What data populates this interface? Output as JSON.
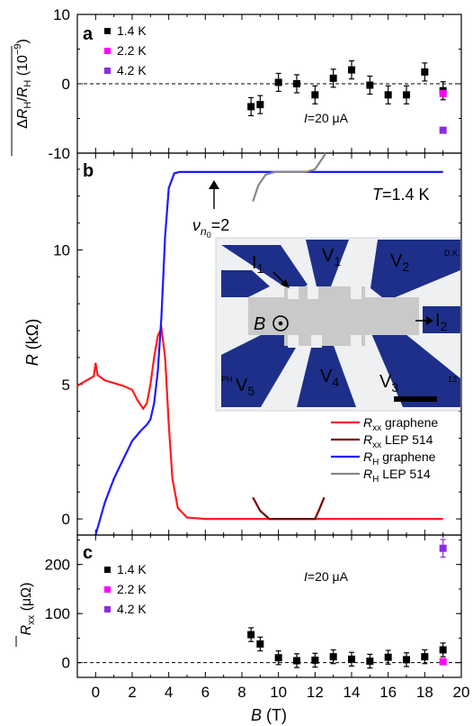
{
  "chart_data": [
    {
      "panel": "a",
      "type": "scatter",
      "ylabel": "ΔR_H/R_H (10^-9)",
      "ylim": [
        -10,
        10
      ],
      "yticks": [
        10,
        0,
        -10
      ],
      "xlim": [
        -1,
        20
      ],
      "annotation": "I=20 μA",
      "legend": [
        "1.4 K",
        "2.2 K",
        "4.2 K"
      ],
      "colors": {
        "1.4 K": "#000000",
        "2.2 K": "#ff00ff",
        "4.2 K": "#8a2be2"
      },
      "series": [
        {
          "name": "1.4 K",
          "points": [
            {
              "x": 8.5,
              "y": -3.3,
              "err": 1.3
            },
            {
              "x": 9,
              "y": -3.0,
              "err": 1.3
            },
            {
              "x": 10,
              "y": 0.2,
              "err": 1.3
            },
            {
              "x": 11,
              "y": 0.0,
              "err": 1.3
            },
            {
              "x": 12,
              "y": -1.6,
              "err": 1.3
            },
            {
              "x": 13,
              "y": 0.8,
              "err": 1.3
            },
            {
              "x": 14,
              "y": 2.0,
              "err": 1.3
            },
            {
              "x": 15,
              "y": -0.2,
              "err": 1.3
            },
            {
              "x": 16,
              "y": -1.6,
              "err": 1.3
            },
            {
              "x": 17,
              "y": -1.6,
              "err": 1.3
            },
            {
              "x": 18,
              "y": 1.7,
              "err": 1.3
            },
            {
              "x": 19,
              "y": -1.0,
              "err": 1.3
            }
          ]
        },
        {
          "name": "2.2 K",
          "points": [
            {
              "x": 19,
              "y": -1.4,
              "err": 0
            }
          ]
        },
        {
          "name": "4.2 K",
          "points": [
            {
              "x": 19,
              "y": -6.7,
              "err": 0
            }
          ]
        }
      ]
    },
    {
      "panel": "b",
      "type": "line",
      "ylabel": "R (kΩ)",
      "ylim": [
        -0.6,
        13.6
      ],
      "yticks": [
        0,
        5,
        10
      ],
      "xlim": [
        -1,
        20
      ],
      "annotations": [
        "T=1.4 K",
        "ν_n0=2"
      ],
      "legend": [
        "R_xx graphene",
        "R_xx LEP 514",
        "R_H graphene",
        "R_H LEP 514"
      ],
      "inset_labels": [
        "I1",
        "V1",
        "V2",
        "B",
        "I2",
        "V5",
        "V4",
        "V3",
        "D.K.",
        "PH",
        "12"
      ],
      "colors": {
        "R_xx graphene": "#ff1a1a",
        "R_xx LEP 514": "#7a0000",
        "R_H graphene": "#1a1aff",
        "R_H LEP 514": "#888888"
      },
      "series": [
        {
          "name": "R_xx graphene",
          "x": [
            -1,
            -0.5,
            -0.1,
            0,
            0.1,
            0.5,
            1,
            1.5,
            2,
            2.3,
            2.6,
            2.8,
            3.0,
            3.2,
            3.4,
            3.6,
            3.8,
            4.0,
            4.2,
            4.5,
            5,
            6,
            8,
            10,
            14,
            18,
            19
          ],
          "y": [
            4.95,
            5.15,
            5.3,
            5.8,
            5.35,
            5.15,
            5.05,
            4.95,
            4.8,
            4.4,
            4.1,
            4.3,
            5.0,
            6.0,
            6.8,
            7.1,
            6.0,
            3.5,
            1.5,
            0.4,
            0.05,
            0,
            0,
            0,
            0,
            0,
            0
          ]
        },
        {
          "name": "R_xx LEP 514",
          "x": [
            8.6,
            9.0,
            9.5,
            10,
            11,
            12,
            12.2,
            12.5
          ],
          "y": [
            0.8,
            0.3,
            0,
            0,
            0,
            0,
            0.3,
            0.8
          ]
        },
        {
          "name": "R_H graphene",
          "x": [
            0,
            0.5,
            1,
            1.5,
            2,
            2.5,
            2.8,
            3.0,
            3.2,
            3.4,
            3.6,
            3.8,
            4.0,
            4.3,
            4.6,
            5,
            6,
            10,
            15,
            19
          ],
          "y": [
            -0.6,
            0.6,
            1.5,
            2.2,
            2.9,
            3.3,
            3.5,
            3.7,
            4.3,
            5.5,
            7.5,
            10.5,
            12.3,
            12.85,
            12.9,
            12.9,
            12.9,
            12.9,
            12.9,
            12.9
          ]
        },
        {
          "name": "R_H LEP 514",
          "x": [
            8.6,
            8.9,
            9.3,
            9.8,
            10.5,
            11.5,
            12,
            12.3,
            12.6
          ],
          "y": [
            11.8,
            12.4,
            12.8,
            12.9,
            12.9,
            12.9,
            13.0,
            13.3,
            13.7
          ]
        }
      ]
    },
    {
      "panel": "c",
      "type": "scatter",
      "ylabel": "R̄_xx (μΩ)",
      "ylim": [
        -30,
        260
      ],
      "yticks": [
        200,
        100,
        0
      ],
      "xlim": [
        -1,
        20
      ],
      "xticks": [
        0,
        2,
        4,
        6,
        8,
        10,
        12,
        14,
        16,
        18,
        20
      ],
      "xlabel": "B (T)",
      "annotation": "I=20 μA",
      "legend": [
        "1.4 K",
        "2.2 K",
        "4.2 K"
      ],
      "colors": {
        "1.4 K": "#000000",
        "2.2 K": "#ff00ff",
        "4.2 K": "#8a2be2"
      },
      "series": [
        {
          "name": "1.4 K",
          "points": [
            {
              "x": 8.5,
              "y": 57,
              "err": 14
            },
            {
              "x": 9,
              "y": 38,
              "err": 14
            },
            {
              "x": 10,
              "y": 10,
              "err": 14
            },
            {
              "x": 11,
              "y": 4,
              "err": 14
            },
            {
              "x": 12,
              "y": 5,
              "err": 14
            },
            {
              "x": 13,
              "y": 12,
              "err": 14
            },
            {
              "x": 14,
              "y": 7,
              "err": 14
            },
            {
              "x": 15,
              "y": 3,
              "err": 14
            },
            {
              "x": 16,
              "y": 11,
              "err": 14
            },
            {
              "x": 17,
              "y": 6,
              "err": 14
            },
            {
              "x": 18,
              "y": 12,
              "err": 14
            },
            {
              "x": 19,
              "y": 26,
              "err": 14
            }
          ]
        },
        {
          "name": "2.2 K",
          "points": [
            {
              "x": 19,
              "y": 2,
              "err": 0
            }
          ]
        },
        {
          "name": "4.2 K",
          "points": [
            {
              "x": 19,
              "y": 233,
              "err": 18
            }
          ]
        }
      ]
    }
  ]
}
